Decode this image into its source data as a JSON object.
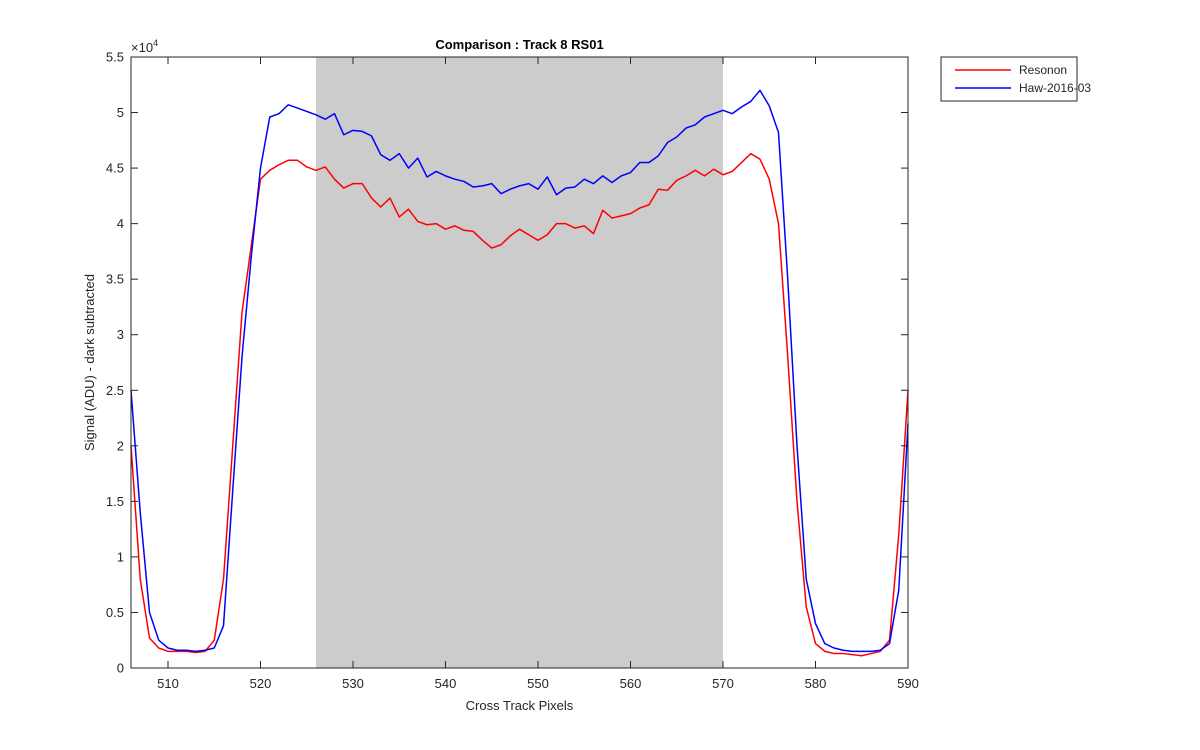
{
  "chart_data": {
    "type": "line",
    "title": "Comparison : Track 8  RS01",
    "xlabel": "Cross Track Pixels",
    "ylabel": "Signal (ADU) - dark subtracted",
    "y_exponent_label": "×10",
    "y_exponent_power": "4",
    "xlim": [
      506,
      590
    ],
    "ylim": [
      0,
      55000
    ],
    "x_ticks": [
      510,
      520,
      530,
      540,
      550,
      560,
      570,
      580,
      590
    ],
    "x_tick_labels": [
      "510",
      "520",
      "530",
      "540",
      "550",
      "560",
      "570",
      "580",
      "590"
    ],
    "y_ticks": [
      0,
      5000,
      10000,
      15000,
      20000,
      25000,
      30000,
      35000,
      40000,
      45000,
      50000,
      55000
    ],
    "y_tick_labels": [
      "0",
      "0.5",
      "1",
      "1.5",
      "2",
      "2.5",
      "3",
      "3.5",
      "4",
      "4.5",
      "5",
      "5.5"
    ],
    "shaded_region": {
      "x": [
        526,
        570
      ],
      "color": "#cccccc"
    },
    "legend": "top-right-outside",
    "grid": false,
    "x": [
      506,
      507,
      508,
      509,
      510,
      511,
      512,
      513,
      514,
      515,
      516,
      517,
      518,
      519,
      520,
      521,
      522,
      523,
      524,
      525,
      526,
      527,
      528,
      529,
      530,
      531,
      532,
      533,
      534,
      535,
      536,
      537,
      538,
      539,
      540,
      541,
      542,
      543,
      544,
      545,
      546,
      547,
      548,
      549,
      550,
      551,
      552,
      553,
      554,
      555,
      556,
      557,
      558,
      559,
      560,
      561,
      562,
      563,
      564,
      565,
      566,
      567,
      568,
      569,
      570,
      571,
      572,
      573,
      574,
      575,
      576,
      577,
      578,
      579,
      580,
      581,
      582,
      583,
      584,
      585,
      586,
      587,
      588,
      589,
      590
    ],
    "series": [
      {
        "name": "Resonon",
        "color": "#ff0000",
        "values": [
          20000,
          8000,
          2700,
          1800,
          1500,
          1500,
          1500,
          1400,
          1500,
          2500,
          8000,
          20000,
          32000,
          38000,
          44000,
          44800,
          45300,
          45700,
          45700,
          45100,
          44800,
          45100,
          44000,
          43200,
          43600,
          43600,
          42300,
          41500,
          42300,
          40600,
          41300,
          40200,
          39900,
          40000,
          39500,
          39800,
          39400,
          39300,
          38500,
          37800,
          38100,
          38900,
          39500,
          39000,
          38500,
          39000,
          40000,
          40000,
          39600,
          39800,
          39100,
          41200,
          40500,
          40700,
          40900,
          41400,
          41700,
          43100,
          43000,
          43900,
          44300,
          44800,
          44300,
          44900,
          44400,
          44700,
          45500,
          46300,
          45800,
          44000,
          40000,
          28000,
          15000,
          5500,
          2200,
          1500,
          1300,
          1300,
          1200,
          1100,
          1300,
          1500,
          2500,
          12000,
          25000
        ]
      },
      {
        "name": "Haw-2016-03",
        "color": "#0000ff",
        "values": [
          25000,
          14000,
          5000,
          2500,
          1800,
          1600,
          1600,
          1500,
          1600,
          1800,
          3800,
          16000,
          28000,
          37000,
          45000,
          49600,
          49900,
          50700,
          50400,
          50100,
          49800,
          49400,
          49900,
          48000,
          48400,
          48300,
          47900,
          46200,
          45700,
          46300,
          45000,
          45900,
          44200,
          44700,
          44300,
          44000,
          43800,
          43300,
          43400,
          43600,
          42700,
          43100,
          43400,
          43600,
          43100,
          44200,
          42600,
          43200,
          43300,
          44000,
          43600,
          44300,
          43700,
          44300,
          44600,
          45500,
          45500,
          46100,
          47300,
          47800,
          48600,
          48900,
          49600,
          49900,
          50200,
          49900,
          50500,
          51000,
          52000,
          50600,
          48200,
          35000,
          20000,
          8000,
          4000,
          2200,
          1800,
          1600,
          1500,
          1500,
          1500,
          1600,
          2200,
          7000,
          22000
        ]
      }
    ]
  }
}
